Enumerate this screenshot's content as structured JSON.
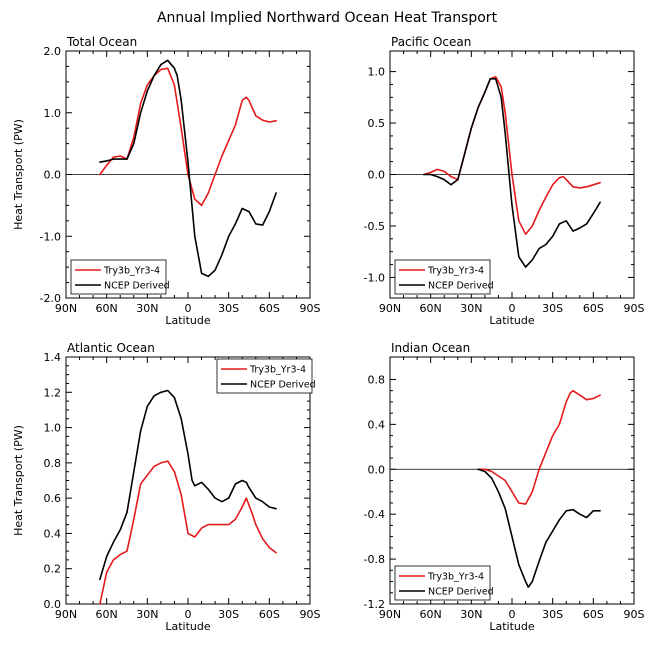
{
  "title": "Annual Implied Northward Ocean Heat Transport",
  "colors": {
    "model": "#e41a1c",
    "obs": "#000000",
    "zero": "#000000"
  },
  "chart_data": [
    {
      "type": "line",
      "title": "Total Ocean",
      "xlabel": "Latitude",
      "ylabel": "Heat Transport (PW)",
      "xlim": [
        90,
        -90
      ],
      "ylim": [
        -2.0,
        2.0
      ],
      "xticks": [
        90,
        60,
        30,
        0,
        -30,
        -60,
        -90
      ],
      "xtick_labels": [
        "90N",
        "60N",
        "30N",
        "0",
        "30S",
        "60S",
        "90S"
      ],
      "yticks": [
        -2.0,
        -1.0,
        0.0,
        1.0,
        2.0
      ],
      "ytick_labels": [
        "-2.0",
        "-1.0",
        "0.0",
        "1.0",
        "2.0"
      ],
      "zero_line": true,
      "legend": {
        "position": "bottom-left",
        "entries": [
          "Try3b_Yr3-4",
          "NCEP Derived"
        ]
      },
      "series": [
        {
          "name": "Try3b_Yr3-4",
          "color": "#e41a1c",
          "x": [
            65,
            60,
            55,
            50,
            45,
            40,
            35,
            30,
            25,
            20,
            15,
            10,
            5,
            0,
            -5,
            -10,
            -15,
            -20,
            -25,
            -30,
            -35,
            -40,
            -43,
            -45,
            -50,
            -55,
            -60,
            -65
          ],
          "y": [
            0.0,
            0.15,
            0.28,
            0.3,
            0.25,
            0.6,
            1.15,
            1.45,
            1.6,
            1.7,
            1.72,
            1.45,
            0.75,
            0.0,
            -0.4,
            -0.5,
            -0.3,
            0.0,
            0.3,
            0.55,
            0.8,
            1.2,
            1.25,
            1.2,
            0.95,
            0.88,
            0.85,
            0.87
          ]
        },
        {
          "name": "NCEP Derived",
          "color": "#000000",
          "x": [
            65,
            60,
            55,
            50,
            45,
            40,
            35,
            30,
            25,
            20,
            15,
            10,
            8,
            5,
            0,
            -5,
            -10,
            -15,
            -20,
            -25,
            -30,
            -35,
            -40,
            -45,
            -50,
            -55,
            -60,
            -65
          ],
          "y": [
            0.2,
            0.22,
            0.25,
            0.25,
            0.25,
            0.5,
            1.0,
            1.35,
            1.6,
            1.78,
            1.85,
            1.72,
            1.6,
            1.2,
            0.2,
            -1.0,
            -1.6,
            -1.65,
            -1.55,
            -1.3,
            -1.0,
            -0.8,
            -0.55,
            -0.6,
            -0.8,
            -0.82,
            -0.6,
            -0.3
          ]
        }
      ]
    },
    {
      "type": "line",
      "title": "Pacific Ocean",
      "xlabel": "Latitude",
      "ylabel": "",
      "xlim": [
        90,
        -90
      ],
      "ylim": [
        -1.2,
        1.2
      ],
      "xticks": [
        90,
        60,
        30,
        0,
        -30,
        -60,
        -90
      ],
      "xtick_labels": [
        "90N",
        "60N",
        "30N",
        "0",
        "30S",
        "60S",
        "90S"
      ],
      "yticks": [
        -1.0,
        -0.5,
        0.0,
        0.5,
        1.0
      ],
      "ytick_labels": [
        "-1.0",
        "-0.5",
        "0.0",
        "0.5",
        "1.0"
      ],
      "zero_line": true,
      "legend": {
        "position": "bottom-left",
        "entries": [
          "Try3b_Yr3-4",
          "NCEP Derived"
        ]
      },
      "series": [
        {
          "name": "Try3b_Yr3-4",
          "color": "#e41a1c",
          "x": [
            65,
            60,
            55,
            50,
            45,
            40,
            35,
            30,
            25,
            20,
            16,
            12,
            8,
            5,
            0,
            -5,
            -10,
            -15,
            -20,
            -25,
            -30,
            -35,
            -38,
            -40,
            -45,
            -50,
            -55,
            -60,
            -65
          ],
          "y": [
            0.0,
            0.02,
            0.05,
            0.03,
            -0.02,
            -0.05,
            0.2,
            0.45,
            0.65,
            0.8,
            0.93,
            0.95,
            0.85,
            0.6,
            0.0,
            -0.45,
            -0.58,
            -0.5,
            -0.35,
            -0.22,
            -0.1,
            -0.03,
            -0.02,
            -0.05,
            -0.12,
            -0.13,
            -0.12,
            -0.1,
            -0.08
          ]
        },
        {
          "name": "NCEP Derived",
          "color": "#000000",
          "x": [
            65,
            60,
            55,
            50,
            45,
            40,
            35,
            30,
            25,
            20,
            16,
            12,
            8,
            5,
            0,
            -5,
            -10,
            -15,
            -20,
            -25,
            -30,
            -35,
            -40,
            -45,
            -50,
            -55,
            -60,
            -65
          ],
          "y": [
            0.0,
            0.0,
            -0.02,
            -0.05,
            -0.1,
            -0.05,
            0.2,
            0.45,
            0.65,
            0.8,
            0.93,
            0.93,
            0.75,
            0.4,
            -0.3,
            -0.8,
            -0.9,
            -0.83,
            -0.72,
            -0.68,
            -0.6,
            -0.48,
            -0.45,
            -0.55,
            -0.52,
            -0.48,
            -0.38,
            -0.27
          ]
        }
      ]
    },
    {
      "type": "line",
      "title": "Atlantic Ocean",
      "xlabel": "Latitude",
      "ylabel": "Heat Transport (PW)",
      "xlim": [
        90,
        -90
      ],
      "ylim": [
        0.0,
        1.4
      ],
      "xticks": [
        90,
        60,
        30,
        0,
        -30,
        -60,
        -90
      ],
      "xtick_labels": [
        "90N",
        "60N",
        "30N",
        "0",
        "30S",
        "60S",
        "90S"
      ],
      "yticks": [
        0.0,
        0.2,
        0.4,
        0.6,
        0.8,
        1.0,
        1.2,
        1.4
      ],
      "ytick_labels": [
        "0.0",
        "0.2",
        "0.4",
        "0.6",
        "0.8",
        "1.0",
        "1.2",
        "1.4"
      ],
      "zero_line": false,
      "legend": {
        "position": "top-right",
        "entries": [
          "Try3b_Yr3-4",
          "NCEP Derived"
        ]
      },
      "series": [
        {
          "name": "Try3b_Yr3-4",
          "color": "#e41a1c",
          "x": [
            65,
            60,
            55,
            50,
            45,
            40,
            35,
            30,
            25,
            20,
            15,
            10,
            5,
            0,
            -5,
            -10,
            -15,
            -20,
            -25,
            -30,
            -35,
            -40,
            -43,
            -47,
            -50,
            -55,
            -60,
            -65
          ],
          "y": [
            0.0,
            0.18,
            0.25,
            0.28,
            0.3,
            0.48,
            0.68,
            0.73,
            0.78,
            0.8,
            0.81,
            0.75,
            0.62,
            0.4,
            0.38,
            0.43,
            0.45,
            0.45,
            0.45,
            0.45,
            0.48,
            0.55,
            0.6,
            0.52,
            0.45,
            0.37,
            0.32,
            0.29
          ]
        },
        {
          "name": "NCEP Derived",
          "color": "#000000",
          "x": [
            65,
            60,
            55,
            50,
            45,
            40,
            35,
            30,
            25,
            20,
            15,
            10,
            5,
            0,
            -3,
            -5,
            -10,
            -15,
            -20,
            -25,
            -30,
            -35,
            -40,
            -43,
            -45,
            -50,
            -55,
            -60,
            -65
          ],
          "y": [
            0.14,
            0.27,
            0.35,
            0.42,
            0.52,
            0.75,
            0.98,
            1.12,
            1.18,
            1.2,
            1.21,
            1.17,
            1.05,
            0.85,
            0.7,
            0.67,
            0.69,
            0.65,
            0.6,
            0.58,
            0.6,
            0.68,
            0.7,
            0.69,
            0.66,
            0.6,
            0.58,
            0.55,
            0.54
          ]
        }
      ]
    },
    {
      "type": "line",
      "title": "Indian Ocean",
      "xlabel": "Latitude",
      "ylabel": "",
      "xlim": [
        90,
        -90
      ],
      "ylim": [
        -1.2,
        1.0
      ],
      "xticks": [
        90,
        60,
        30,
        0,
        -30,
        -60,
        -90
      ],
      "xtick_labels": [
        "90N",
        "60N",
        "30N",
        "0",
        "30S",
        "60S",
        "90S"
      ],
      "yticks": [
        -1.2,
        -0.8,
        -0.4,
        0.0,
        0.4,
        0.8
      ],
      "ytick_labels": [
        "-1.2",
        "-0.8",
        "-0.4",
        "0.0",
        "0.4",
        "0.8"
      ],
      "zero_line": true,
      "legend": {
        "position": "bottom-left",
        "entries": [
          "Try3b_Yr3-4",
          "NCEP Derived"
        ]
      },
      "series": [
        {
          "name": "Try3b_Yr3-4",
          "color": "#e41a1c",
          "x": [
            25,
            20,
            15,
            10,
            5,
            0,
            -5,
            -10,
            -15,
            -20,
            -25,
            -30,
            -35,
            -40,
            -43,
            -45,
            -50,
            -55,
            -60,
            -65
          ],
          "y": [
            0.0,
            0.0,
            -0.02,
            -0.06,
            -0.1,
            -0.2,
            -0.3,
            -0.31,
            -0.2,
            0.0,
            0.15,
            0.3,
            0.4,
            0.6,
            0.68,
            0.7,
            0.66,
            0.62,
            0.63,
            0.66
          ]
        },
        {
          "name": "NCEP Derived",
          "color": "#000000",
          "x": [
            25,
            20,
            15,
            10,
            5,
            0,
            -5,
            -10,
            -12,
            -15,
            -20,
            -25,
            -30,
            -35,
            -40,
            -45,
            -50,
            -55,
            -60,
            -65
          ],
          "y": [
            0.0,
            -0.02,
            -0.08,
            -0.2,
            -0.35,
            -0.6,
            -0.85,
            -1.0,
            -1.05,
            -1.0,
            -0.82,
            -0.65,
            -0.55,
            -0.45,
            -0.37,
            -0.36,
            -0.4,
            -0.43,
            -0.37,
            -0.37
          ]
        }
      ]
    }
  ]
}
